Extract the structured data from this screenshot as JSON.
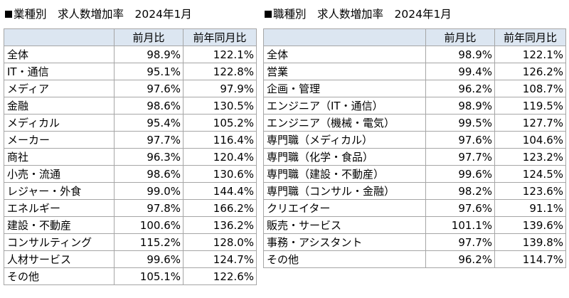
{
  "left": {
    "title": "業種別　求人数増加率　2024年1月",
    "headers": [
      "",
      "前月比",
      "前年同月比"
    ],
    "rows": [
      [
        "全体",
        "98.9%",
        "122.1%"
      ],
      [
        "IT・通信",
        "95.1%",
        "122.8%"
      ],
      [
        "メディア",
        "97.6%",
        "97.9%"
      ],
      [
        "金融",
        "98.6%",
        "130.5%"
      ],
      [
        "メディカル",
        "95.4%",
        "105.2%"
      ],
      [
        "メーカー",
        "97.7%",
        "116.4%"
      ],
      [
        "商社",
        "96.3%",
        "120.4%"
      ],
      [
        "小売・流通",
        "98.6%",
        "130.6%"
      ],
      [
        "レジャー・外食",
        "99.0%",
        "144.4%"
      ],
      [
        "エネルギー",
        "97.8%",
        "166.2%"
      ],
      [
        "建設・不動産",
        "100.6%",
        "136.2%"
      ],
      [
        "コンサルティング",
        "115.2%",
        "128.0%"
      ],
      [
        "人材サービス",
        "99.6%",
        "124.7%"
      ],
      [
        "その他",
        "105.1%",
        "122.6%"
      ]
    ]
  },
  "right": {
    "title": "職種別　求人数増加率　2024年1月",
    "headers": [
      "",
      "前月比",
      "前年同月比"
    ],
    "rows": [
      [
        "全体",
        "98.9%",
        "122.1%"
      ],
      [
        "営業",
        "99.4%",
        "126.2%"
      ],
      [
        "企画・管理",
        "96.2%",
        "108.7%"
      ],
      [
        "エンジニア（IT・通信）",
        "98.9%",
        "119.5%"
      ],
      [
        "エンジニア（機械・電気）",
        "99.5%",
        "127.7%"
      ],
      [
        "専門職（メディカル）",
        "97.6%",
        "104.6%"
      ],
      [
        "専門職（化学・食品）",
        "97.7%",
        "123.2%"
      ],
      [
        "専門職（建設・不動産）",
        "99.6%",
        "124.5%"
      ],
      [
        "専門職（コンサル・金融）",
        "98.2%",
        "123.6%"
      ],
      [
        "クリエイター",
        "97.6%",
        "91.1%"
      ],
      [
        "販売・サービス",
        "101.1%",
        "139.6%"
      ],
      [
        "事務・アシスタント",
        "97.7%",
        "139.8%"
      ],
      [
        "その他",
        "96.2%",
        "114.7%"
      ]
    ]
  }
}
